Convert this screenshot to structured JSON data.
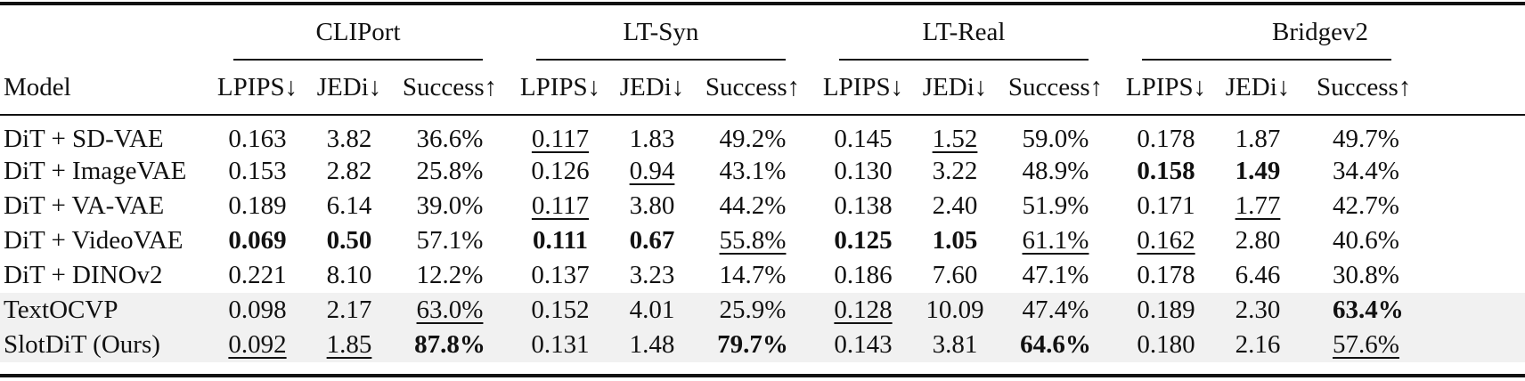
{
  "table": {
    "model_header": "Model",
    "groups": [
      "CLIPort",
      "LT-Syn",
      "LT-Real",
      "Bridgev2"
    ],
    "metrics": [
      "LPIPS↓",
      "JEDi↓",
      "Success↑"
    ],
    "rows": [
      {
        "model": "DiT + SD-VAE",
        "shaded": false,
        "cells": [
          {
            "v": "0.163",
            "s": ""
          },
          {
            "v": "3.82",
            "s": ""
          },
          {
            "v": "36.6%",
            "s": ""
          },
          {
            "v": "0.117",
            "s": "u"
          },
          {
            "v": "1.83",
            "s": ""
          },
          {
            "v": "49.2%",
            "s": ""
          },
          {
            "v": "0.145",
            "s": ""
          },
          {
            "v": "1.52",
            "s": "u"
          },
          {
            "v": "59.0%",
            "s": ""
          },
          {
            "v": "0.178",
            "s": ""
          },
          {
            "v": "1.87",
            "s": ""
          },
          {
            "v": "49.7%",
            "s": ""
          }
        ]
      },
      {
        "model": "DiT + ImageVAE",
        "shaded": false,
        "cells": [
          {
            "v": "0.153",
            "s": ""
          },
          {
            "v": "2.82",
            "s": ""
          },
          {
            "v": "25.8%",
            "s": ""
          },
          {
            "v": "0.126",
            "s": ""
          },
          {
            "v": "0.94",
            "s": "u"
          },
          {
            "v": "43.1%",
            "s": ""
          },
          {
            "v": "0.130",
            "s": ""
          },
          {
            "v": "3.22",
            "s": ""
          },
          {
            "v": "48.9%",
            "s": ""
          },
          {
            "v": "0.158",
            "s": "b"
          },
          {
            "v": "1.49",
            "s": "b"
          },
          {
            "v": "34.4%",
            "s": ""
          }
        ]
      },
      {
        "model": "DiT + VA-VAE",
        "shaded": false,
        "cells": [
          {
            "v": "0.189",
            "s": ""
          },
          {
            "v": "6.14",
            "s": ""
          },
          {
            "v": "39.0%",
            "s": ""
          },
          {
            "v": "0.117",
            "s": "u"
          },
          {
            "v": "3.80",
            "s": ""
          },
          {
            "v": "44.2%",
            "s": ""
          },
          {
            "v": "0.138",
            "s": ""
          },
          {
            "v": "2.40",
            "s": ""
          },
          {
            "v": "51.9%",
            "s": ""
          },
          {
            "v": "0.171",
            "s": ""
          },
          {
            "v": "1.77",
            "s": "u"
          },
          {
            "v": "42.7%",
            "s": ""
          }
        ]
      },
      {
        "model": "DiT + VideoVAE",
        "shaded": false,
        "cells": [
          {
            "v": "0.069",
            "s": "b"
          },
          {
            "v": "0.50",
            "s": "b"
          },
          {
            "v": "57.1%",
            "s": ""
          },
          {
            "v": "0.111",
            "s": "b"
          },
          {
            "v": "0.67",
            "s": "b"
          },
          {
            "v": "55.8%",
            "s": "u"
          },
          {
            "v": "0.125",
            "s": "b"
          },
          {
            "v": "1.05",
            "s": "b"
          },
          {
            "v": "61.1%",
            "s": "u"
          },
          {
            "v": "0.162",
            "s": "u"
          },
          {
            "v": "2.80",
            "s": ""
          },
          {
            "v": "40.6%",
            "s": ""
          }
        ]
      },
      {
        "model": "DiT + DINOv2",
        "shaded": false,
        "cells": [
          {
            "v": "0.221",
            "s": ""
          },
          {
            "v": "8.10",
            "s": ""
          },
          {
            "v": "12.2%",
            "s": ""
          },
          {
            "v": "0.137",
            "s": ""
          },
          {
            "v": "3.23",
            "s": ""
          },
          {
            "v": "14.7%",
            "s": ""
          },
          {
            "v": "0.186",
            "s": ""
          },
          {
            "v": "7.60",
            "s": ""
          },
          {
            "v": "47.1%",
            "s": ""
          },
          {
            "v": "0.178",
            "s": ""
          },
          {
            "v": "6.46",
            "s": ""
          },
          {
            "v": "30.8%",
            "s": ""
          }
        ]
      },
      {
        "model": "TextOCVP",
        "shaded": true,
        "cells": [
          {
            "v": "0.098",
            "s": ""
          },
          {
            "v": "2.17",
            "s": ""
          },
          {
            "v": "63.0%",
            "s": "u"
          },
          {
            "v": "0.152",
            "s": ""
          },
          {
            "v": "4.01",
            "s": ""
          },
          {
            "v": "25.9%",
            "s": ""
          },
          {
            "v": "0.128",
            "s": "u"
          },
          {
            "v": "10.09",
            "s": ""
          },
          {
            "v": "47.4%",
            "s": ""
          },
          {
            "v": "0.189",
            "s": ""
          },
          {
            "v": "2.30",
            "s": ""
          },
          {
            "v": "63.4%",
            "s": "b"
          }
        ]
      },
      {
        "model": "SlotDiT (Ours)",
        "shaded": true,
        "cells": [
          {
            "v": "0.092",
            "s": "u"
          },
          {
            "v": "1.85",
            "s": "u"
          },
          {
            "v": "87.8%",
            "s": "b"
          },
          {
            "v": "0.131",
            "s": ""
          },
          {
            "v": "1.48",
            "s": ""
          },
          {
            "v": "79.7%",
            "s": "b"
          },
          {
            "v": "0.143",
            "s": ""
          },
          {
            "v": "3.81",
            "s": ""
          },
          {
            "v": "64.6%",
            "s": "b"
          },
          {
            "v": "0.180",
            "s": ""
          },
          {
            "v": "2.16",
            "s": ""
          },
          {
            "v": "57.6%",
            "s": "u"
          }
        ]
      }
    ]
  }
}
